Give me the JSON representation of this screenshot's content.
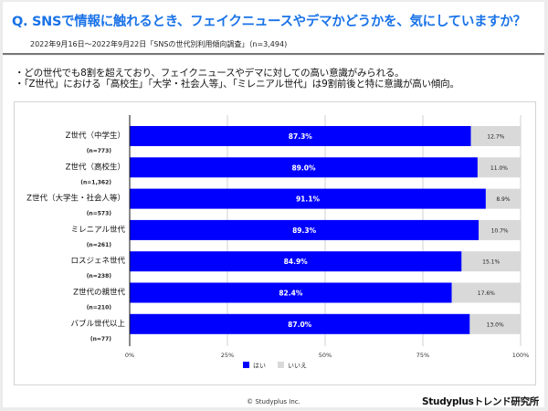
{
  "header": {
    "title": "Q. SNSで情報に触れるとき、フェイクニュースやデマかどうかを、気にしていますか？",
    "subtitle": "2022年9月16日～2022年9月22日「SNSの世代別利用傾向調査」（n=3,494)"
  },
  "bullets": [
    "・どの世代でも8割を超えており、フェイクニュースやデマに対しての高い意識がみられる。",
    "・「Z世代」における「高校生」「大学・社会人等」、「ミレニアル世代」は9割前後と特に意識が高い傾向。"
  ],
  "colors": {
    "yes": "#0000ff",
    "no": "#d9d9d9",
    "title": "#1a73e8"
  },
  "chart_data": {
    "type": "bar",
    "orientation": "horizontal",
    "stacked": true,
    "percent": true,
    "categories": [
      {
        "label": "Z世代（中学生）",
        "n": "(n=773)"
      },
      {
        "label": "Z世代（高校生）",
        "n": "(n=1,362)"
      },
      {
        "label": "Z世代（大学生・社会人等）",
        "n": "(n=573)"
      },
      {
        "label": "ミレニアル世代",
        "n": "(n=261)"
      },
      {
        "label": "ロスジェネ世代",
        "n": "(n=238)"
      },
      {
        "label": "Z世代の親世代",
        "n": "(n=210)"
      },
      {
        "label": "バブル世代以上",
        "n": "(n=77)"
      }
    ],
    "series": [
      {
        "name": "はい",
        "values": [
          87.3,
          89.0,
          91.1,
          89.3,
          84.9,
          82.4,
          87.0
        ],
        "labels": [
          "87.3%",
          "89.0%",
          "91.1%",
          "89.3%",
          "84.9%",
          "82.4%",
          "87.0%"
        ]
      },
      {
        "name": "いいえ",
        "values": [
          12.7,
          11.0,
          8.9,
          10.7,
          15.1,
          17.6,
          13.0
        ],
        "labels": [
          "12.7%",
          "11.0%",
          "8.9%",
          "10.7%",
          "15.1%",
          "17.6%",
          "13.0%"
        ]
      }
    ],
    "xlim": [
      0,
      100
    ],
    "xticks": [
      "0%",
      "25%",
      "50%",
      "75%",
      "100%"
    ],
    "grid": true,
    "legend": "bottom-center"
  },
  "footer": {
    "copyright": "© Studyplus Inc.",
    "brand": "Studyplusトレンド研究所"
  }
}
